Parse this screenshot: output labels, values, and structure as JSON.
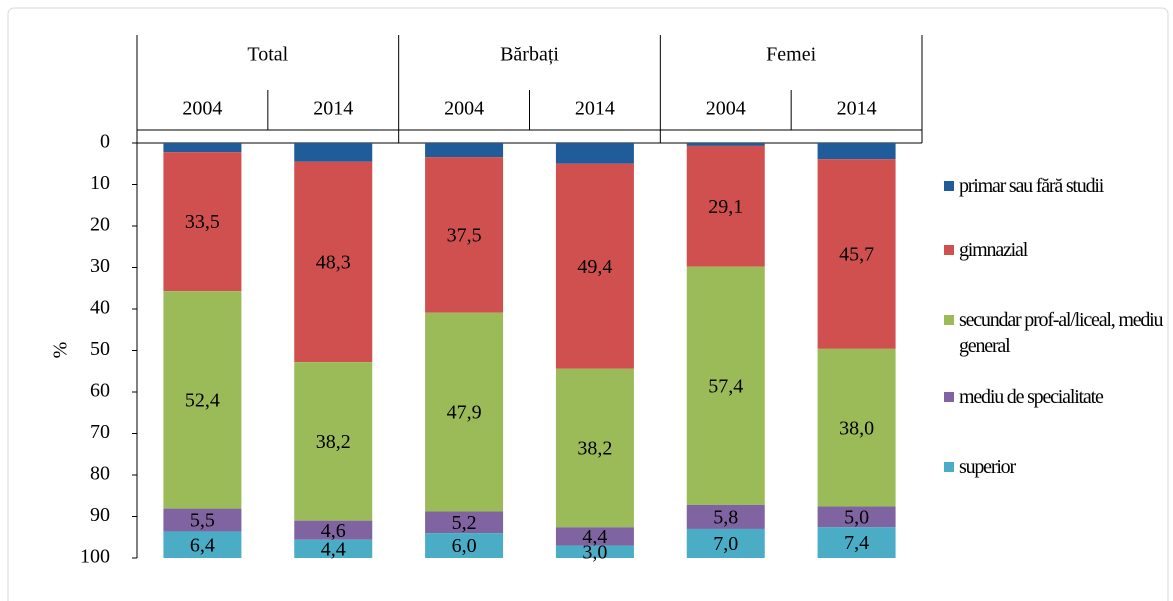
{
  "chart_data": {
    "type": "stacked-bar",
    "groups": [
      "Total",
      "Bărbați",
      "Femei"
    ],
    "categories": [
      "2004",
      "2014",
      "2004",
      "2014",
      "2004",
      "2014"
    ],
    "y_label": "%",
    "ylim": [
      0,
      100
    ],
    "y_inverted": true,
    "yticks": [
      0,
      10,
      20,
      30,
      40,
      50,
      60,
      70,
      80,
      90,
      100
    ],
    "series": [
      {
        "name": "primar sau fără studii",
        "color": "#1f5c99",
        "values": [
          2.2,
          4.5,
          3.4,
          5.0,
          0.7,
          3.9
        ]
      },
      {
        "name": "gimnazial",
        "color": "#d0504f",
        "values": [
          33.5,
          48.3,
          37.5,
          49.4,
          29.1,
          45.7
        ],
        "value_labels": [
          "33,5",
          "48,3",
          "37,5",
          "49,4",
          "29,1",
          "45,7"
        ]
      },
      {
        "name": "secundar prof-al/liceal, mediu general",
        "color": "#9bbb59",
        "values": [
          52.4,
          38.2,
          47.9,
          38.2,
          57.4,
          38.0
        ],
        "value_labels": [
          "52,4",
          "38,2",
          "47,9",
          "38,2",
          "57,4",
          "38,0"
        ]
      },
      {
        "name": "mediu de specialitate",
        "color": "#8064a2",
        "values": [
          5.5,
          4.6,
          5.2,
          4.4,
          5.8,
          5.0
        ],
        "value_labels": [
          "5,5",
          "4,6",
          "5,2",
          "4,4",
          "5,8",
          "5,0"
        ]
      },
      {
        "name": "superior",
        "color": "#4bacc6",
        "values": [
          6.4,
          4.4,
          6.0,
          3.0,
          7.0,
          7.4
        ],
        "value_labels": [
          "6,4",
          "4,4",
          "6,0",
          "3,0",
          "7,0",
          "7,4"
        ]
      }
    ]
  }
}
